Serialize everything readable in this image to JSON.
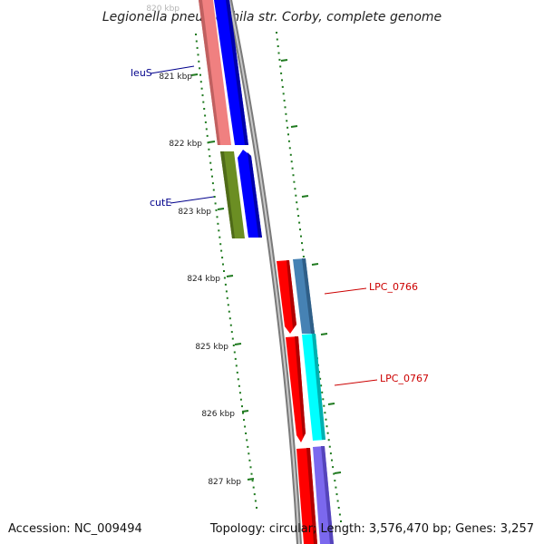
{
  "title": "Legionella pneumophila str. Corby, complete genome",
  "footer": {
    "accession": "Accession: NC_009494",
    "topology": "Topology: circular; Length: 3,576,470 bp; Genes: 3,257"
  },
  "ticks": [
    {
      "label": "820 kbp",
      "faded": true
    },
    {
      "label": "821 kbp"
    },
    {
      "label": "822 kbp"
    },
    {
      "label": "823 kbp"
    },
    {
      "label": "824 kbp"
    },
    {
      "label": "825 kbp"
    },
    {
      "label": "826 kbp"
    },
    {
      "label": "827 kbp"
    }
  ],
  "gene_labels": [
    {
      "id": "leuS",
      "text": "leuS",
      "color": "#00008b"
    },
    {
      "id": "cutE",
      "text": "cutE",
      "color": "#00008b"
    },
    {
      "id": "lpc0766",
      "text": "LPC_0766",
      "color": "#cc0000"
    },
    {
      "id": "lpc0767",
      "text": "LPC_0767",
      "color": "#cc0000"
    }
  ],
  "colors": {
    "backbone": "#808080",
    "tick": "#1f7a1f",
    "salmon": "#f08080",
    "blue": "#0000ff",
    "olive": "#6b8e23",
    "red": "#ff0000",
    "steelblue": "#4682b4",
    "cyan": "#00ffff",
    "slateblue": "#7b68ee"
  }
}
